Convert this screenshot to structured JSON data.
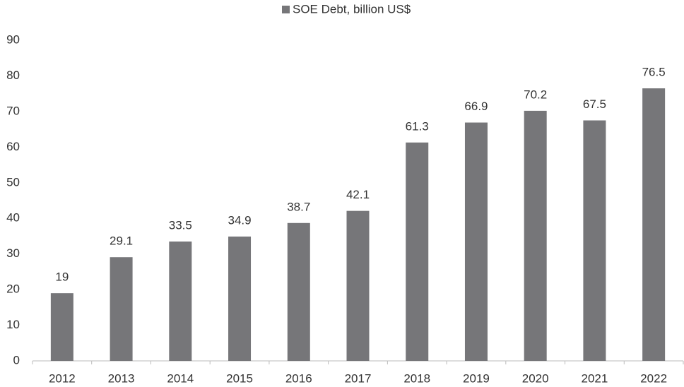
{
  "chart_data": {
    "type": "bar",
    "categories": [
      "2012",
      "2013",
      "2014",
      "2015",
      "2016",
      "2017",
      "2018",
      "2019",
      "2020",
      "2021",
      "2022"
    ],
    "series": [
      {
        "name": "SOE Debt, billion US$",
        "color": "#767679",
        "values": [
          19,
          29.1,
          33.5,
          34.9,
          38.7,
          42.1,
          61.3,
          66.9,
          70.2,
          67.5,
          76.5
        ]
      }
    ],
    "ylim": [
      0,
      90
    ],
    "yticks": [
      0,
      10,
      20,
      30,
      40,
      50,
      60,
      70,
      80,
      90
    ],
    "legend": "top",
    "grid": false
  }
}
